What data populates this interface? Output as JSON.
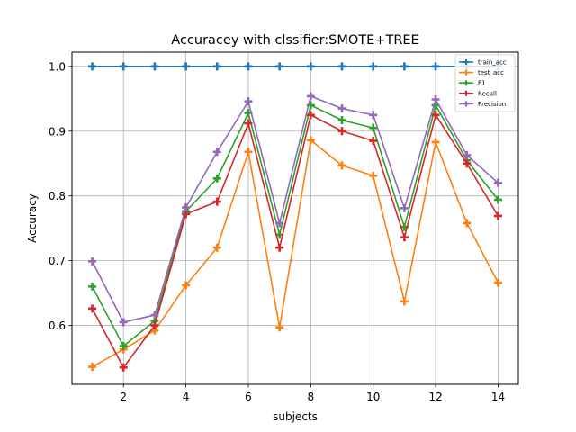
{
  "chart_data": {
    "type": "line",
    "title": "Accuracey with clssifier:SMOTE+TREE",
    "xlabel": "subjects",
    "ylabel": "Accuracy",
    "x": [
      1,
      2,
      3,
      4,
      5,
      6,
      7,
      8,
      9,
      10,
      11,
      12,
      13,
      14
    ],
    "xlim": [
      0.35,
      14.65
    ],
    "ylim": [
      0.509,
      1.022
    ],
    "xticks": [
      2,
      4,
      6,
      8,
      10,
      12,
      14
    ],
    "yticks": [
      0.6,
      0.7,
      0.8,
      0.9,
      1.0
    ],
    "ytick_labels": [
      "0.6",
      "0.7",
      "0.8",
      "0.9",
      "1.0"
    ],
    "grid": true,
    "legend_position": "upper-right",
    "marker": "plus",
    "series": [
      {
        "name": "train_acc",
        "color": "#1f77b4",
        "values": [
          1.0,
          1.0,
          1.0,
          1.0,
          1.0,
          1.0,
          1.0,
          1.0,
          1.0,
          1.0,
          1.0,
          1.0,
          1.0,
          1.0
        ]
      },
      {
        "name": "test_acc",
        "color": "#ff7f0e",
        "values": [
          0.536,
          0.563,
          0.592,
          0.662,
          0.72,
          0.868,
          0.597,
          0.886,
          0.847,
          0.831,
          0.637,
          0.883,
          0.758,
          0.666
        ]
      },
      {
        "name": "F1",
        "color": "#2ca02c",
        "values": [
          0.66,
          0.568,
          0.607,
          0.776,
          0.827,
          0.928,
          0.74,
          0.94,
          0.917,
          0.905,
          0.752,
          0.94,
          0.855,
          0.794
        ]
      },
      {
        "name": "Recall",
        "color": "#d62728",
        "values": [
          0.626,
          0.535,
          0.6,
          0.772,
          0.791,
          0.912,
          0.72,
          0.925,
          0.9,
          0.885,
          0.736,
          0.925,
          0.85,
          0.769
        ]
      },
      {
        "name": "Precision",
        "color": "#9467bd",
        "values": [
          0.699,
          0.605,
          0.616,
          0.782,
          0.868,
          0.946,
          0.758,
          0.954,
          0.935,
          0.925,
          0.781,
          0.949,
          0.863,
          0.82
        ]
      }
    ]
  }
}
